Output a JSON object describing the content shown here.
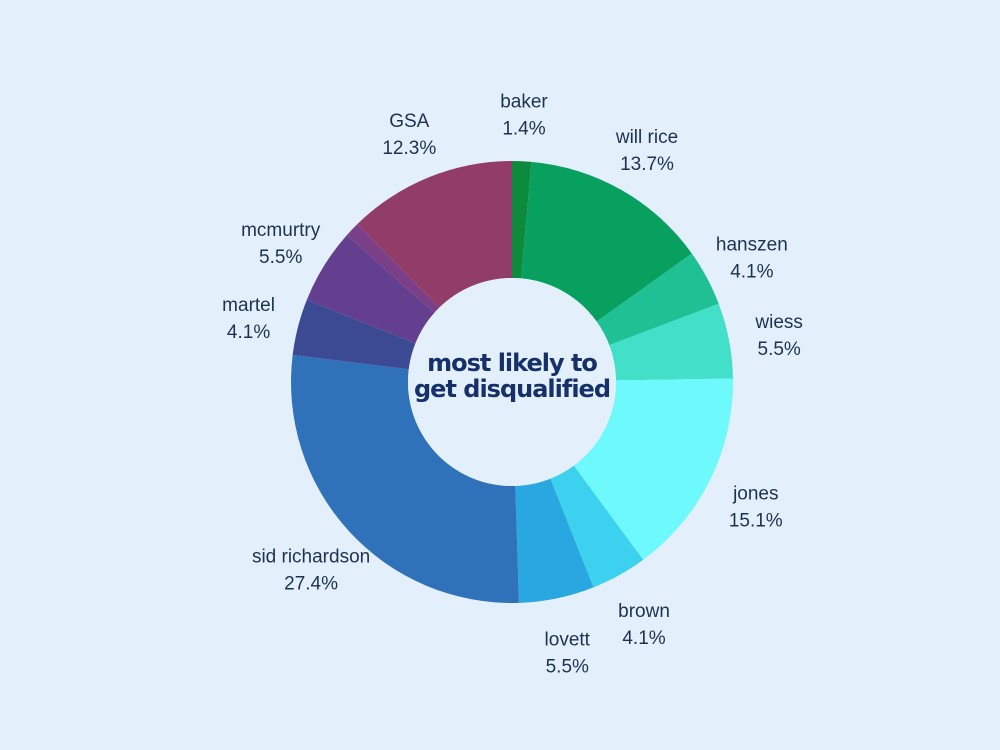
{
  "chart_data": {
    "type": "pie",
    "variant": "donut",
    "title_lines": [
      "most likely to",
      "get disqualified"
    ],
    "background": "#e3f0fb",
    "start_angle_deg": 0,
    "direction": "clockwise",
    "slices": [
      {
        "label": "baker",
        "value": 1.4,
        "value_text": "1.4%",
        "color": "#0e8a3c"
      },
      {
        "label": "will rice",
        "value": 13.7,
        "value_text": "13.7%",
        "color": "#07a05e"
      },
      {
        "label": "hanszen",
        "value": 4.1,
        "value_text": "4.1%",
        "color": "#1fc194"
      },
      {
        "label": "wiess",
        "value": 5.5,
        "value_text": "5.5%",
        "color": "#42e0c9"
      },
      {
        "label": "jones",
        "value": 15.1,
        "value_text": "15.1%",
        "color": "#6ef9fd"
      },
      {
        "label": "brown",
        "value": 4.1,
        "value_text": "4.1%",
        "color": "#3dd1f0"
      },
      {
        "label": "lovett",
        "value": 5.5,
        "value_text": "5.5%",
        "color": "#28a7e1"
      },
      {
        "label": "sid richardson",
        "value": 27.4,
        "value_text": "27.4%",
        "color": "#3072b9"
      },
      {
        "label": "martel",
        "value": 4.1,
        "value_text": "4.1%",
        "color": "#3c4a94"
      },
      {
        "label": "mcmurtry",
        "value": 5.5,
        "value_text": "5.5%",
        "color": "#643f8f"
      },
      {
        "label": "",
        "value": 1.1,
        "value_text": "",
        "color": "#7a3f87"
      },
      {
        "label": "GSA",
        "value": 12.3,
        "value_text": "12.3%",
        "color": "#923d68"
      }
    ]
  }
}
